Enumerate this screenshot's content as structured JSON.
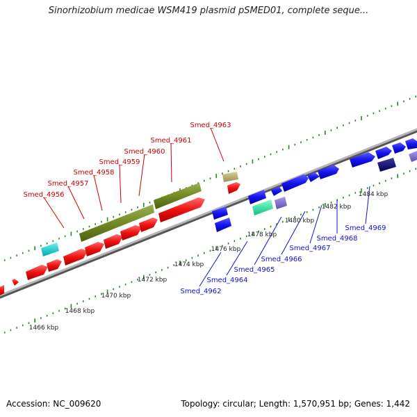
{
  "title": "Sinorhizobium medicae WSM419 plasmid pSMED01, complete seque...",
  "footer": {
    "accession": "Accession: NC_009620",
    "summary": "Topology: circular; Length: 1,570,951 bp; Genes: 1,442"
  },
  "colors": {
    "reverse_label": "#cc0000",
    "forward_label": "#1010cc",
    "backbone": "#808080",
    "tick": "#228b22"
  },
  "kbp_ticks": [
    "1466 kbp",
    "1468 kbp",
    "1470 kbp",
    "1472 kbp",
    "1474 kbp",
    "1476 kbp",
    "1478 kbp",
    "1480 kbp",
    "1482 kbp",
    "1484 kbp"
  ],
  "reverse_gene_labels": [
    "Smed_4956",
    "Smed_4957",
    "Smed_4958",
    "Smed_4959",
    "Smed_4960",
    "Smed_4961",
    "Smed_4963"
  ],
  "forward_gene_labels": [
    "Smed_4962",
    "Smed_4964",
    "Smed_4965",
    "Smed_4966",
    "Smed_4967",
    "Smed_4968",
    "Smed_4969"
  ]
}
